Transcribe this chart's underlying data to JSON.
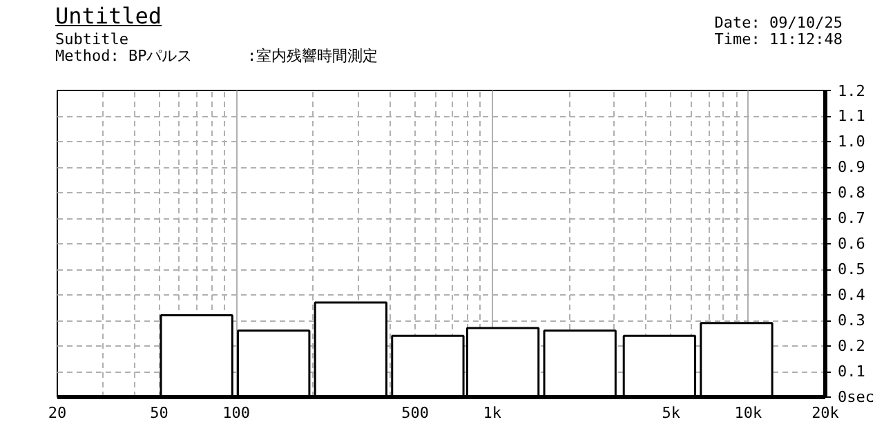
{
  "chart_data": {
    "type": "bar",
    "title": "Untitled",
    "subtitle": "Subtitle",
    "annotations": [
      "Method: BPパルス      :室内残響時間測定",
      "Date: 09/10/25",
      "Time: 11:12:48"
    ],
    "x": [
      70,
      140,
      280,
      560,
      1100,
      2200,
      4500,
      9000
    ],
    "values": [
      0.32,
      0.26,
      0.37,
      0.24,
      0.27,
      0.26,
      0.24,
      0.29
    ],
    "color": "#ffffff",
    "log": "x",
    "xlim": [
      20,
      20000
    ],
    "xticks": [
      20,
      50,
      100,
      500,
      {
        "value": 1000,
        "label": "1k"
      },
      {
        "value": 5000,
        "label": "5k"
      },
      {
        "value": 10000,
        "label": "10k"
      },
      {
        "value": 20000,
        "label": "20k"
      }
    ],
    "ylim": [
      0,
      1.2
    ],
    "yticks": [
      {
        "value": 0,
        "label": "0sec"
      },
      0.1,
      0.2,
      0.3,
      0.4,
      0.5,
      0.6,
      0.7,
      0.8,
      0.9,
      {
        "value": 1.0,
        "label": "1.0"
      },
      1.1,
      1.2
    ],
    "grid": true
  }
}
